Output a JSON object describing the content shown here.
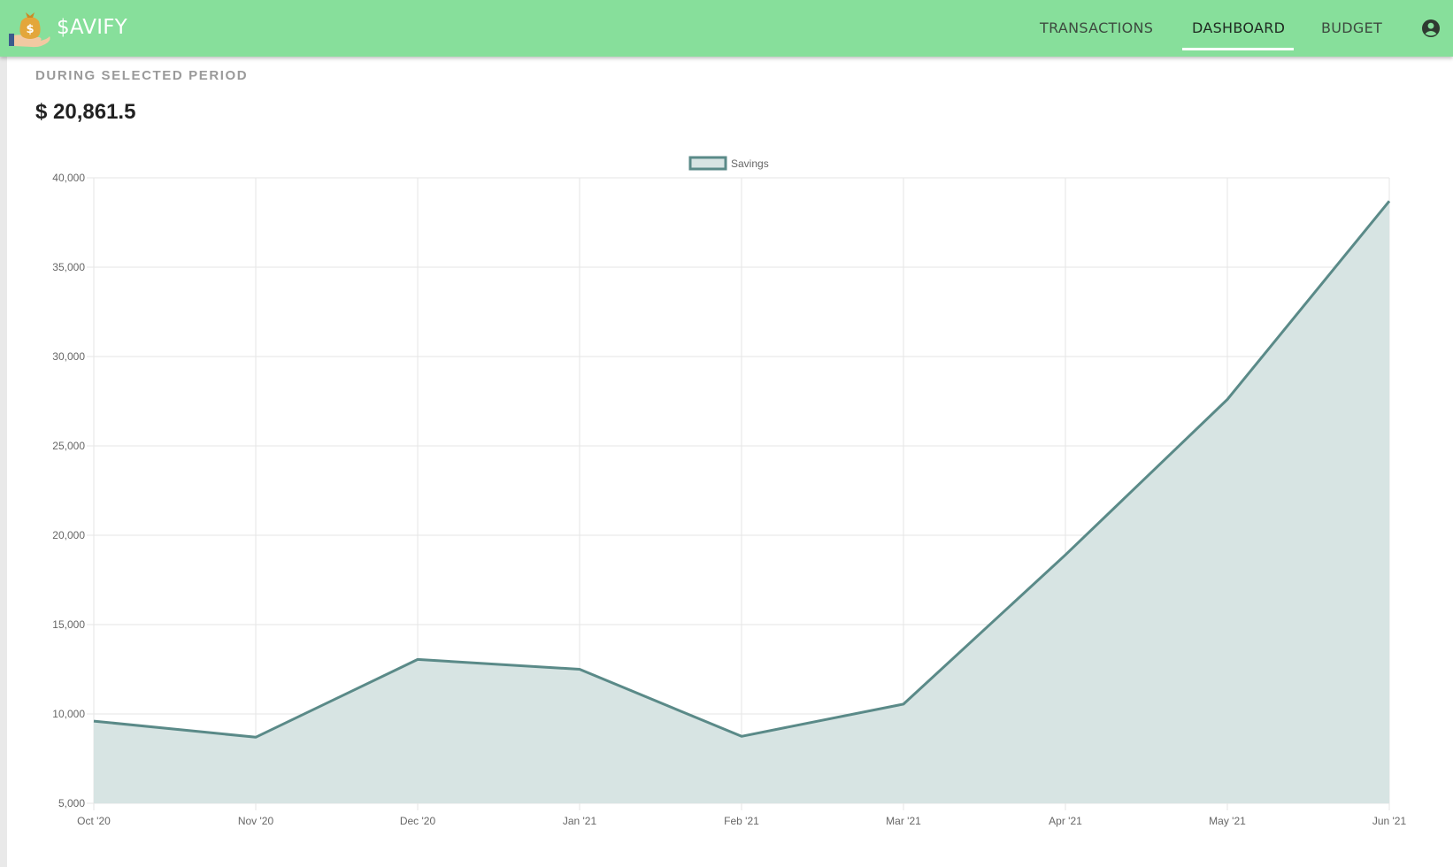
{
  "app": {
    "brand": "$AVIFY",
    "brand_color": "#87df9b"
  },
  "nav": {
    "items": [
      {
        "label": "TRANSACTIONS",
        "active": false
      },
      {
        "label": "DASHBOARD",
        "active": true
      },
      {
        "label": "BUDGET",
        "active": false
      }
    ],
    "account_icon": "account-circle-icon"
  },
  "summary": {
    "subtitle": "DURING SELECTED PERIOD",
    "amount": "$ 20,861.5"
  },
  "chart_data": {
    "type": "area",
    "categories": [
      "Oct '20",
      "Nov '20",
      "Dec '20",
      "Jan '21",
      "Feb '21",
      "Mar '21",
      "Apr '21",
      "May '21",
      "Jun '21"
    ],
    "series": [
      {
        "name": "Savings",
        "values": [
          9600,
          8700,
          13050,
          12500,
          8750,
          10550,
          18900,
          27600,
          38700
        ],
        "line_color": "#5a8a88",
        "fill_color": "#d7e4e3"
      }
    ],
    "y_ticks": [
      "40,000",
      "35,000",
      "30,000",
      "25,000",
      "20,000",
      "15,000",
      "10,000",
      "5,000"
    ],
    "ylim": [
      5000,
      40000
    ],
    "grid": true,
    "legend": "top-center"
  }
}
